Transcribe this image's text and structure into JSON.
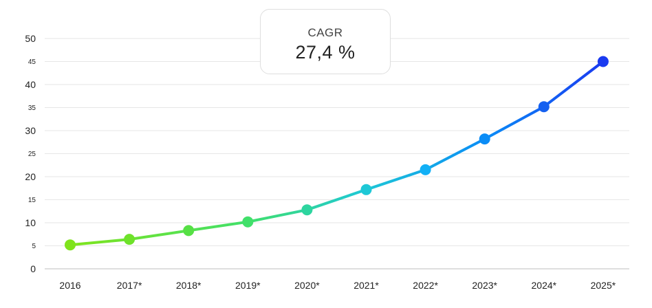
{
  "cagr": {
    "label": "CAGR",
    "value": "27,4 %"
  },
  "chart_data": {
    "type": "line",
    "categories": [
      "2016",
      "2017*",
      "2018*",
      "2019*",
      "2020*",
      "2021*",
      "2022*",
      "2023*",
      "2024*",
      "2025*"
    ],
    "series": [
      {
        "values": [
          5.2,
          6.4,
          8.3,
          10.2,
          12.8,
          17.2,
          21.5,
          28.2,
          35.2,
          45.0
        ]
      }
    ],
    "yticks": [
      {
        "value": 0,
        "label": "0",
        "major": true
      },
      {
        "value": 5,
        "label": "5",
        "major": false
      },
      {
        "value": 10,
        "label": "10",
        "major": true
      },
      {
        "value": 15,
        "label": "15",
        "major": false
      },
      {
        "value": 20,
        "label": "20",
        "major": true
      },
      {
        "value": 25,
        "label": "25",
        "major": false
      },
      {
        "value": 30,
        "label": "30",
        "major": true
      },
      {
        "value": 35,
        "label": "35",
        "major": false
      },
      {
        "value": 40,
        "label": "40",
        "major": true
      },
      {
        "value": 45,
        "label": "45",
        "major": false
      },
      {
        "value": 50,
        "label": "50",
        "major": true
      }
    ],
    "ylim": [
      0,
      50
    ],
    "grid": true,
    "point_colors": [
      "#7fe31c",
      "#6ee22a",
      "#56e045",
      "#41e06a",
      "#2dd59f",
      "#1ec8d6",
      "#12b0f6",
      "#0a8cf6",
      "#1560f0",
      "#1a3af0"
    ]
  }
}
